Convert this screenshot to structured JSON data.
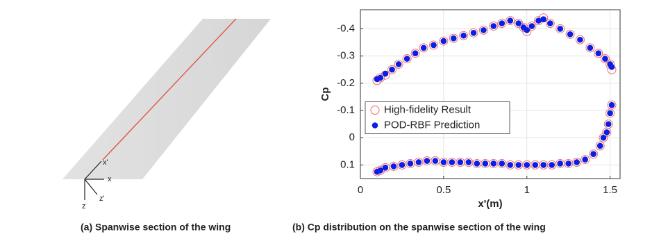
{
  "diagram": {
    "labels": [
      "x'",
      "x",
      "z'",
      "z"
    ],
    "caption": "(a) Spanwise section of the wing"
  },
  "chart_caption": "(b) Cp distribution on the spanwise section of the wing",
  "chart_data": {
    "type": "scatter",
    "xlabel": "x'(m)",
    "ylabel": "Cp",
    "xlim": [
      0,
      1.56
    ],
    "ylim": [
      0.15,
      -0.47
    ],
    "xticks": [
      0,
      0.5,
      1,
      1.5
    ],
    "yticks": [
      0.1,
      0,
      -0.1,
      -0.2,
      -0.3,
      -0.4
    ],
    "grid": true,
    "legend": "center left",
    "series": [
      {
        "name": "High-fidelity Result",
        "color": "#f06a6a",
        "marker": "open-circle",
        "x": [
          0.1,
          0.12,
          0.15,
          0.19,
          0.23,
          0.28,
          0.33,
          0.38,
          0.44,
          0.5,
          0.56,
          0.62,
          0.68,
          0.74,
          0.8,
          0.85,
          0.9,
          0.95,
          0.98,
          1.0,
          1.03,
          1.07,
          1.1,
          1.14,
          1.2,
          1.26,
          1.32,
          1.38,
          1.43,
          1.47,
          1.5,
          1.51,
          1.51,
          1.5,
          1.49,
          1.48,
          1.46,
          1.44,
          1.4,
          1.35,
          1.3,
          1.25,
          1.2,
          1.15,
          1.1,
          1.05,
          1.0,
          0.95,
          0.9,
          0.85,
          0.8,
          0.75,
          0.7,
          0.65,
          0.6,
          0.55,
          0.5,
          0.45,
          0.4,
          0.35,
          0.3,
          0.25,
          0.2,
          0.15,
          0.12,
          0.1
        ],
        "values": [
          -0.21,
          -0.22,
          -0.23,
          -0.25,
          -0.27,
          -0.29,
          -0.31,
          -0.33,
          -0.34,
          -0.355,
          -0.365,
          -0.375,
          -0.385,
          -0.395,
          -0.41,
          -0.42,
          -0.43,
          -0.42,
          -0.405,
          -0.39,
          -0.41,
          -0.43,
          -0.44,
          -0.42,
          -0.4,
          -0.38,
          -0.36,
          -0.33,
          -0.31,
          -0.29,
          -0.27,
          -0.25,
          -0.12,
          -0.09,
          -0.05,
          -0.02,
          0.0,
          0.03,
          0.06,
          0.08,
          0.09,
          0.095,
          0.095,
          0.1,
          0.1,
          0.1,
          0.1,
          0.1,
          0.1,
          0.095,
          0.095,
          0.095,
          0.095,
          0.09,
          0.09,
          0.09,
          0.09,
          0.085,
          0.085,
          0.09,
          0.095,
          0.1,
          0.105,
          0.11,
          0.12,
          0.125
        ]
      },
      {
        "name": "POD-RBF Prediction",
        "color": "#0a1ee6",
        "marker": "filled-circle",
        "x": [
          0.1,
          0.12,
          0.15,
          0.19,
          0.23,
          0.28,
          0.33,
          0.38,
          0.44,
          0.5,
          0.56,
          0.62,
          0.68,
          0.74,
          0.8,
          0.85,
          0.9,
          0.95,
          0.98,
          1.0,
          1.03,
          1.07,
          1.1,
          1.14,
          1.2,
          1.26,
          1.32,
          1.38,
          1.43,
          1.47,
          1.5,
          1.51,
          1.51,
          1.5,
          1.49,
          1.48,
          1.46,
          1.44,
          1.4,
          1.35,
          1.3,
          1.25,
          1.2,
          1.15,
          1.1,
          1.05,
          1.0,
          0.95,
          0.9,
          0.85,
          0.8,
          0.75,
          0.7,
          0.65,
          0.6,
          0.55,
          0.5,
          0.45,
          0.4,
          0.35,
          0.3,
          0.25,
          0.2,
          0.15,
          0.12,
          0.1
        ],
        "values": [
          -0.215,
          -0.22,
          -0.235,
          -0.25,
          -0.27,
          -0.29,
          -0.31,
          -0.33,
          -0.34,
          -0.355,
          -0.365,
          -0.375,
          -0.385,
          -0.395,
          -0.41,
          -0.42,
          -0.43,
          -0.42,
          -0.405,
          -0.395,
          -0.41,
          -0.43,
          -0.435,
          -0.42,
          -0.4,
          -0.38,
          -0.36,
          -0.33,
          -0.31,
          -0.29,
          -0.27,
          -0.26,
          -0.12,
          -0.09,
          -0.05,
          -0.02,
          0.0,
          0.03,
          0.06,
          0.08,
          0.09,
          0.095,
          0.095,
          0.1,
          0.1,
          0.1,
          0.1,
          0.1,
          0.1,
          0.095,
          0.095,
          0.095,
          0.095,
          0.09,
          0.09,
          0.09,
          0.09,
          0.085,
          0.085,
          0.09,
          0.095,
          0.1,
          0.105,
          0.11,
          0.12,
          0.125
        ]
      }
    ]
  }
}
